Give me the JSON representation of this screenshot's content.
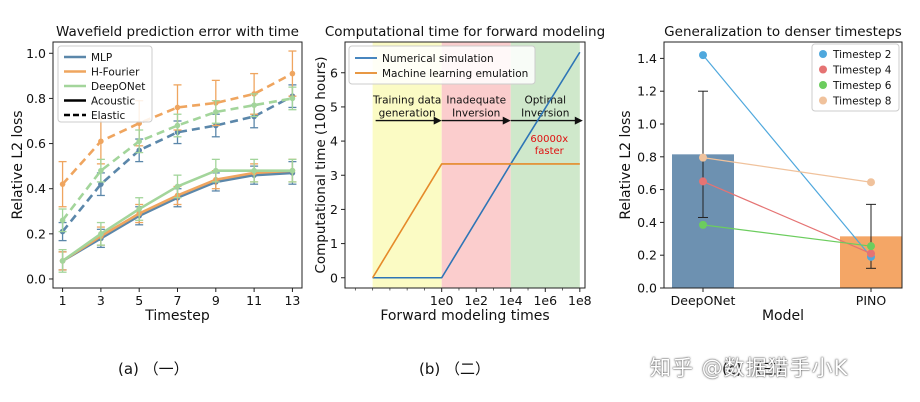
{
  "captions": {
    "a": "(a) （一）",
    "b": "(b) （二）",
    "c": "(c) （三）"
  },
  "watermark": "知乎 @数据猎手小K",
  "chart_data": [
    {
      "type": "line",
      "title": "Wavefield prediction error with time",
      "xlabel": "Timestep",
      "ylabel": "Relative L2 loss",
      "x": [
        1,
        3,
        5,
        7,
        9,
        11,
        13
      ],
      "xticks": [
        "1",
        "3",
        "5",
        "7",
        "9",
        "11",
        "13"
      ],
      "ylim": [
        -0.04,
        1.05
      ],
      "yticks": [
        0.0,
        0.2,
        0.4,
        0.6,
        0.8,
        1.0
      ],
      "ytick_labels": [
        "0.0",
        "0.2",
        "0.4",
        "0.6",
        "0.8",
        "1.0"
      ],
      "colors": {
        "MLP": "#5b87aa",
        "H-Fourier": "#efa55f",
        "DeepONet": "#a3d59b"
      },
      "legend": {
        "placement": "top-left",
        "entries": [
          {
            "label": "MLP",
            "color": "#5b87aa",
            "style": "solid"
          },
          {
            "label": "H-Fourier",
            "color": "#efa55f",
            "style": "solid"
          },
          {
            "label": "DeepONet",
            "color": "#a3d59b",
            "style": "solid"
          },
          {
            "label": "Acoustic",
            "color": "#000000",
            "style": "solid"
          },
          {
            "label": "Elastic",
            "color": "#000000",
            "style": "dashed"
          }
        ]
      },
      "series": [
        {
          "name": "MLP",
          "medium": "Acoustic",
          "values": [
            0.08,
            0.18,
            0.28,
            0.36,
            0.43,
            0.46,
            0.47
          ],
          "err": [
            0.04,
            0.04,
            0.04,
            0.04,
            0.04,
            0.04,
            0.05
          ]
        },
        {
          "name": "H-Fourier",
          "medium": "Acoustic",
          "values": [
            0.08,
            0.19,
            0.29,
            0.37,
            0.44,
            0.47,
            0.48
          ],
          "err": [
            0.04,
            0.04,
            0.04,
            0.04,
            0.04,
            0.04,
            0.05
          ]
        },
        {
          "name": "DeepONet",
          "medium": "Acoustic",
          "values": [
            0.08,
            0.2,
            0.31,
            0.41,
            0.48,
            0.48,
            0.48
          ],
          "err": [
            0.05,
            0.05,
            0.05,
            0.05,
            0.05,
            0.05,
            0.05
          ]
        },
        {
          "name": "MLP",
          "medium": "Elastic",
          "values": [
            0.21,
            0.42,
            0.57,
            0.65,
            0.68,
            0.72,
            0.81
          ],
          "err": [
            0.04,
            0.05,
            0.05,
            0.05,
            0.05,
            0.05,
            0.05
          ]
        },
        {
          "name": "H-Fourier",
          "medium": "Elastic",
          "values": [
            0.42,
            0.61,
            0.69,
            0.76,
            0.78,
            0.82,
            0.91
          ],
          "err": [
            0.1,
            0.1,
            0.1,
            0.1,
            0.1,
            0.09,
            0.1
          ]
        },
        {
          "name": "DeepONet",
          "medium": "Elastic",
          "values": [
            0.26,
            0.48,
            0.61,
            0.68,
            0.74,
            0.77,
            0.8
          ],
          "err": [
            0.05,
            0.05,
            0.05,
            0.05,
            0.05,
            0.05,
            0.05
          ]
        }
      ]
    },
    {
      "type": "line",
      "title": "Computational time for forward modeling",
      "xlabel": "Forward modeling times",
      "ylabel": "Computational time (100 hours)",
      "xlim": [
        -5.6,
        8.3
      ],
      "xticks": [
        0,
        2,
        4,
        6,
        8
      ],
      "xtick_labels": [
        "1e0",
        "1e2",
        "1e4",
        "1e6",
        "1e8"
      ],
      "ylim": [
        -0.3,
        6.9
      ],
      "yticks": [
        0,
        1,
        2,
        3,
        4,
        5,
        6
      ],
      "ytick_labels": [
        "0",
        "1",
        "2",
        "3",
        "4",
        "5",
        "6"
      ],
      "legend": {
        "placement": "top-left",
        "entries": [
          {
            "label": "Numerical simulation",
            "color": "#2e75b6"
          },
          {
            "label": "Machine learning emulation",
            "color": "#e58a2a"
          }
        ]
      },
      "series": [
        {
          "name": "Numerical simulation",
          "color": "#2e75b6",
          "x": [
            -4,
            0,
            4,
            8
          ],
          "values": [
            0,
            0,
            3.33,
            6.6
          ]
        },
        {
          "name": "Machine learning emulation",
          "color": "#e58a2a",
          "x": [
            -4,
            0,
            8
          ],
          "values": [
            0,
            3.33,
            3.33
          ]
        }
      ],
      "regions": [
        {
          "label": "Training data generation",
          "line1": "Training data",
          "line2": "generation",
          "x0": -4,
          "x1": 0,
          "color": "#fbfbc4"
        },
        {
          "label": "Inadequate Inversion",
          "line1": "Inadequate",
          "line2": "Inversion",
          "x0": 0,
          "x1": 4,
          "color": "#fbcdcd"
        },
        {
          "label": "Optimal Inversion",
          "line1": "Optimal",
          "line2": "Inversion",
          "x0": 4,
          "x1": 8,
          "color": "#cfe8cb"
        }
      ],
      "arrow_y": 4.6,
      "annotation": {
        "line1": "60000x",
        "line2": "faster",
        "color": "#e01010",
        "x": 6,
        "y": 3.85
      }
    },
    {
      "type": "bar",
      "title": "Generalization to denser timesteps",
      "xlabel": "Model",
      "ylabel": "Relative L2 loss",
      "categories": [
        "DeepONet",
        "PINO"
      ],
      "values": [
        0.815,
        0.315
      ],
      "err": [
        0.385,
        0.195
      ],
      "bar_colors": [
        "#6d91b1",
        "#f4a666"
      ],
      "ylim": [
        0,
        1.5
      ],
      "yticks": [
        0.0,
        0.2,
        0.4,
        0.6,
        0.8,
        1.0,
        1.2,
        1.4
      ],
      "ytick_labels": [
        "0.0",
        "0.2",
        "0.4",
        "0.6",
        "0.8",
        "1.0",
        "1.2",
        "1.4"
      ],
      "legend": {
        "placement": "top-right",
        "entries": [
          {
            "label": "Timestep 2",
            "color": "#4fa8dd"
          },
          {
            "label": "Timestep 4",
            "color": "#e57373"
          },
          {
            "label": "Timestep 6",
            "color": "#6ccd5e"
          },
          {
            "label": "Timestep 8",
            "color": "#f0c29c"
          }
        ]
      },
      "points": [
        {
          "name": "Timestep 2",
          "color": "#4fa8dd",
          "values": [
            1.42,
            0.19
          ]
        },
        {
          "name": "Timestep 4",
          "color": "#e57373",
          "values": [
            0.65,
            0.21
          ]
        },
        {
          "name": "Timestep 6",
          "color": "#6ccd5e",
          "values": [
            0.385,
            0.255
          ]
        },
        {
          "name": "Timestep 8",
          "color": "#f0c29c",
          "values": [
            0.795,
            0.645
          ]
        }
      ]
    }
  ]
}
